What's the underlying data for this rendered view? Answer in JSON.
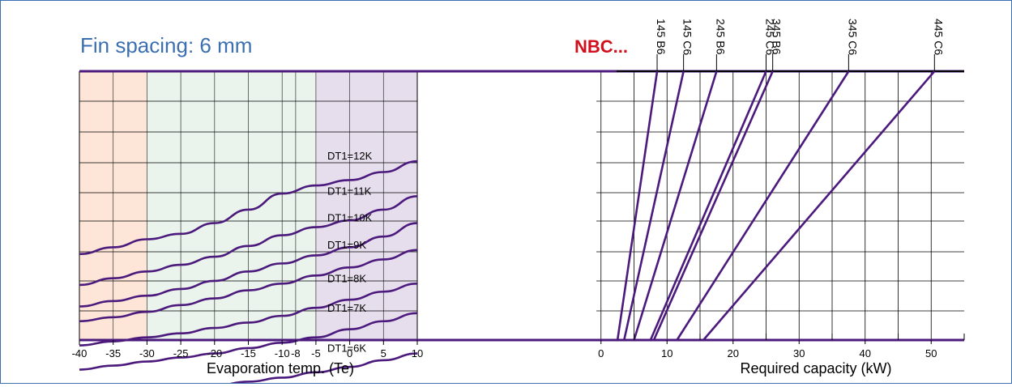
{
  "title": "Fin spacing: 6 mm",
  "brand": "NBC...",
  "colors": {
    "curve": "#4b1a7c",
    "frame": "#3b6fb0",
    "title": "#3b6fb0",
    "brand": "#d0101c",
    "band_orange": "#fde6d8",
    "band_green": "#eaf3ec",
    "band_purple": "#e6deed",
    "grid": "#000000"
  },
  "chart_data": [
    {
      "type": "line",
      "xlabel": "Evaporation temp. (Te)",
      "ylabel": "",
      "xlim": [
        -40,
        10
      ],
      "x_ticks": [
        "-40",
        "-35",
        "-30",
        "-25",
        "-20",
        "-15",
        "-10",
        "-8",
        "-5",
        "0",
        "5",
        "10"
      ],
      "x_tick_values": [
        -40,
        -35,
        -30,
        -25,
        -20,
        -15,
        -10,
        -8,
        -5,
        0,
        5,
        10
      ],
      "shaded_bands": [
        {
          "from": -40,
          "to": -30,
          "color_key": "band_orange"
        },
        {
          "from": -30,
          "to": -5,
          "color_key": "band_green"
        },
        {
          "from": -5,
          "to": 10,
          "color_key": "band_purple"
        }
      ],
      "grid": true,
      "x": [
        -40,
        -35,
        -30,
        -25,
        -20,
        -15,
        -10,
        -5,
        0,
        5,
        10
      ],
      "series": [
        {
          "name": "DT1=12K",
          "values": [
            0.68,
            0.655,
            0.625,
            0.605,
            0.565,
            0.515,
            0.455,
            0.425,
            0.405,
            0.375,
            0.335
          ]
        },
        {
          "name": "DT1=11K",
          "values": [
            0.795,
            0.77,
            0.745,
            0.72,
            0.69,
            0.65,
            0.61,
            0.58,
            0.555,
            0.515,
            0.465
          ]
        },
        {
          "name": "DT1=10K",
          "values": [
            0.875,
            0.855,
            0.835,
            0.81,
            0.78,
            0.745,
            0.715,
            0.685,
            0.655,
            0.615,
            0.565
          ]
        },
        {
          "name": "DT1=9K",
          "values": [
            0.93,
            0.915,
            0.895,
            0.87,
            0.845,
            0.815,
            0.79,
            0.76,
            0.73,
            0.7,
            0.665
          ]
        },
        {
          "name": "DT1=8K",
          "values": [
            1.02,
            1.005,
            0.99,
            0.975,
            0.955,
            0.935,
            0.91,
            0.88,
            0.85,
            0.82,
            0.79
          ]
        },
        {
          "name": "DT1=7K",
          "values": [
            1.11,
            1.095,
            1.08,
            1.065,
            1.05,
            1.03,
            1.01,
            0.99,
            0.96,
            0.93,
            0.9
          ]
        },
        {
          "name": "DT1=6K",
          "values": [
            1.22,
            1.21,
            1.2,
            1.185,
            1.17,
            1.155,
            1.14,
            1.12,
            1.1,
            1.075,
            1.05
          ]
        }
      ]
    },
    {
      "type": "line",
      "xlabel": "Required capacity (kW)",
      "ylabel": "",
      "xlim": [
        -5,
        55
      ],
      "x_ticks": [
        "0",
        "10",
        "20",
        "30",
        "40",
        "50"
      ],
      "x_tick_values": [
        0,
        10,
        20,
        30,
        40,
        50
      ],
      "minor_x_ticks": [
        5,
        15,
        25,
        35,
        45,
        55
      ],
      "grid": true,
      "series": [
        {
          "name": "145 B6",
          "x_top": 8.5,
          "x_bottom": 2.5
        },
        {
          "name": "145 C6",
          "x_top": 12.5,
          "x_bottom": 3.5
        },
        {
          "name": "245 B6",
          "x_top": 17.5,
          "x_bottom": 5.0
        },
        {
          "name": "245 C6",
          "x_top": 25.0,
          "x_bottom": 7.5
        },
        {
          "name": "345 B6",
          "x_top": 26.0,
          "x_bottom": 8.0
        },
        {
          "name": "345 C6",
          "x_top": 37.5,
          "x_bottom": 11.5
        },
        {
          "name": "445 C6",
          "x_top": 50.5,
          "x_bottom": 15.5
        }
      ]
    }
  ]
}
